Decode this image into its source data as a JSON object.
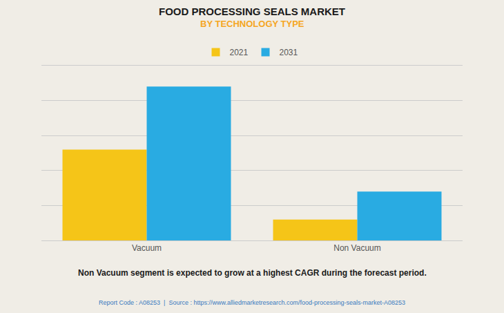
{
  "chart_data": {
    "type": "bar",
    "title": "FOOD PROCESSING SEALS MARKET",
    "subtitle": "BY TECHNOLOGY TYPE",
    "categories": [
      "Vacuum",
      "Non Vacuum"
    ],
    "series": [
      {
        "name": "2021",
        "color": "#F5C518",
        "values": [
          0.52,
          0.12
        ]
      },
      {
        "name": "2031",
        "color": "#29ABE2",
        "values": [
          0.88,
          0.28
        ]
      }
    ],
    "ylim": [
      0,
      1.0
    ],
    "yticks": [
      0,
      0.2,
      0.4,
      0.6,
      0.8,
      1.0
    ],
    "grid": true,
    "legend": "top",
    "tick_labels": "x",
    "annotations": [
      "Non Vacuum segment is expected to grow at a highest CAGR during the forecast period.",
      "Report Code : A08253  |  Source : https://www.alliedmarketresearch.com/food-processing-seals-market-A08253"
    ]
  }
}
